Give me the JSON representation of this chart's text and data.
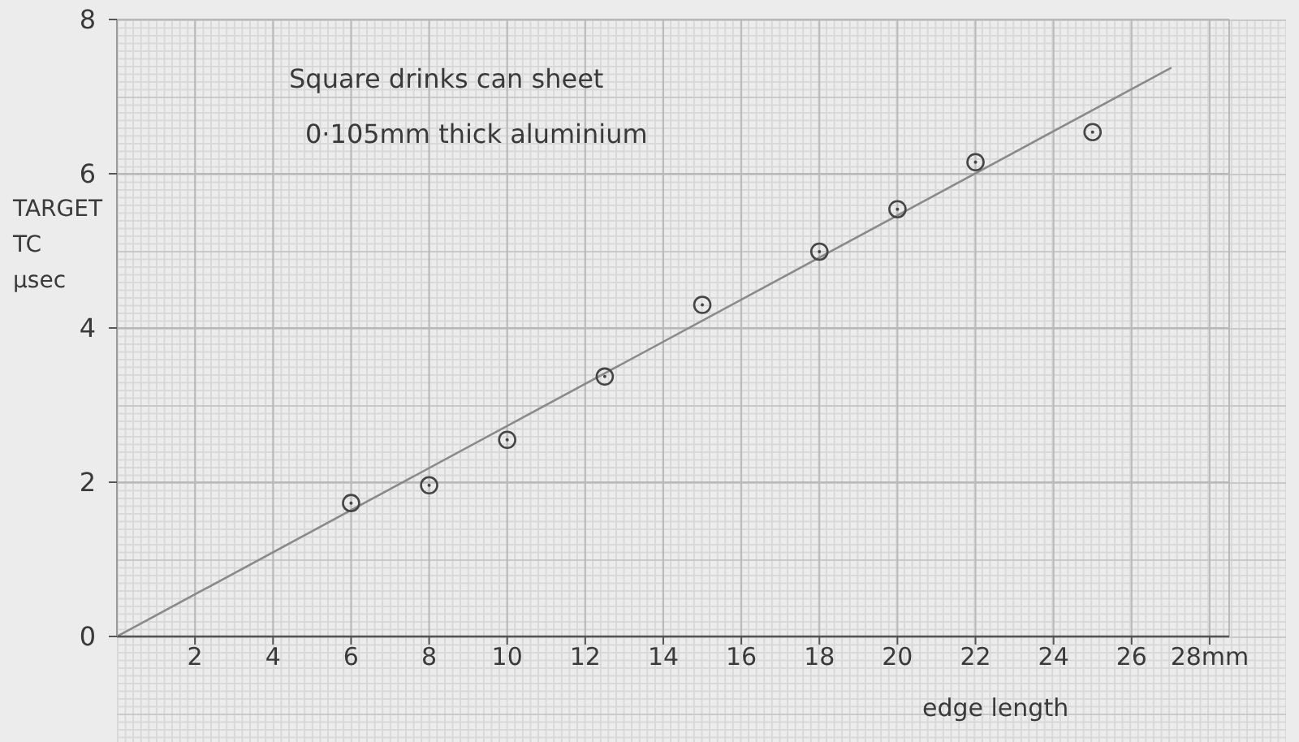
{
  "chart_data": {
    "type": "scatter",
    "xlabel": "edge length",
    "ylabel": "TARGET TC μsec",
    "annotations": [
      "Square drinks can sheet",
      "0·105mm thick aluminium"
    ],
    "series": [
      {
        "color": "#454545",
        "marker": "circle",
        "x": [
          6,
          8,
          10,
          12.5,
          15,
          18,
          20,
          22,
          25
        ],
        "values": [
          1.73,
          1.96,
          2.55,
          3.37,
          4.3,
          4.99,
          5.54,
          6.15,
          6.54
        ]
      },
      {
        "type": "line",
        "color": "#8a8a8a",
        "x": [
          0,
          27
        ],
        "values": [
          0,
          7.37
        ]
      }
    ],
    "xlim": [
      0,
      28.5
    ],
    "ylim": [
      0,
      8
    ],
    "xticks": [
      2,
      4,
      6,
      8,
      10,
      12,
      14,
      16,
      18,
      20,
      22,
      24,
      26,
      {
        "value": 28,
        "label": "28mm"
      }
    ],
    "yticks": [
      0,
      2,
      4,
      6,
      8
    ],
    "grid": true
  }
}
